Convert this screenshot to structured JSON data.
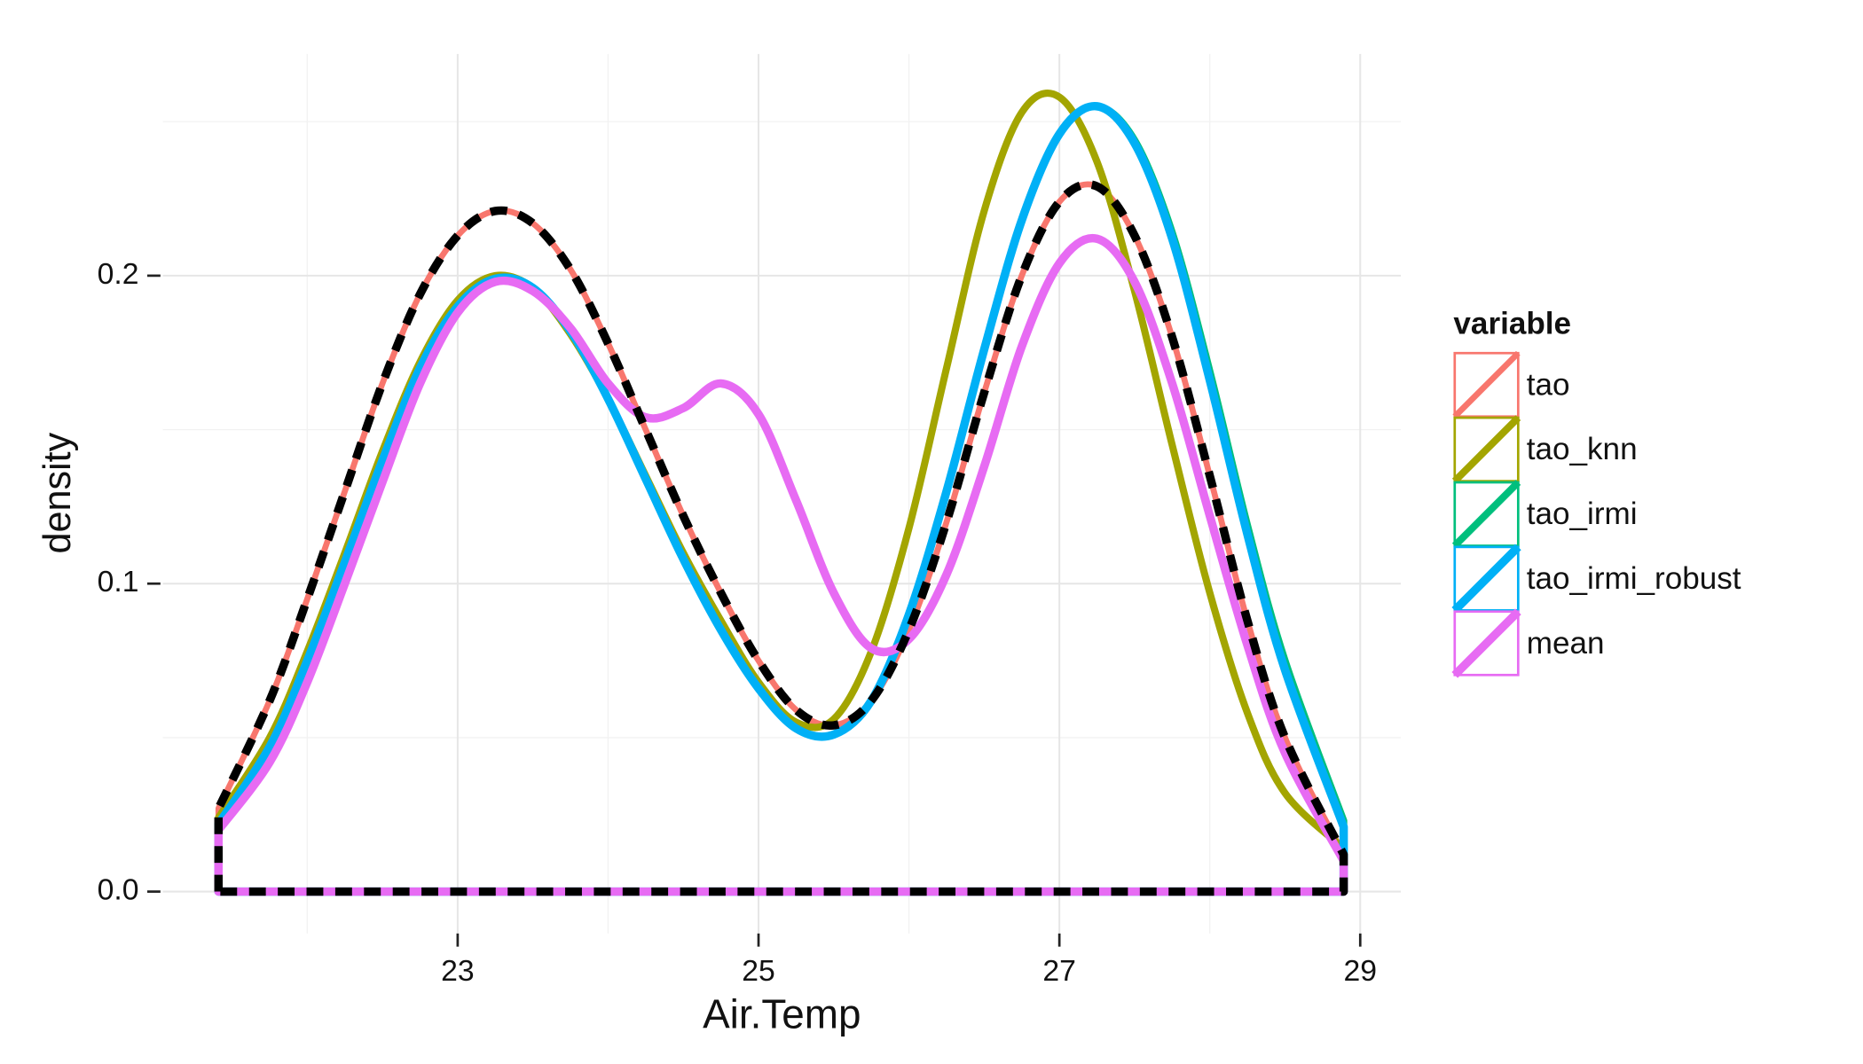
{
  "chart_data": {
    "type": "density",
    "x_label": "Air.Temp",
    "y_label": "density",
    "legend_title": "variable",
    "legend": "right",
    "grid": true,
    "xlim": [
      21.04,
      29.27
    ],
    "ylim": [
      -0.0136,
      0.272
    ],
    "xticks": [
      23,
      25,
      27,
      29
    ],
    "yticks": [
      {
        "value": 0,
        "label": "0.0"
      },
      0.1,
      0.2
    ],
    "xminor": [
      22,
      24,
      26,
      28
    ],
    "yminor": [
      0.05,
      0.15,
      0.25
    ],
    "x": [
      21.41,
      21.41,
      21.75,
      22,
      22.25,
      22.5,
      22.75,
      23,
      23.25,
      23.5,
      23.75,
      24,
      24.25,
      24.5,
      24.75,
      25,
      25.25,
      25.5,
      25.75,
      26,
      26.25,
      26.5,
      26.75,
      27,
      27.25,
      27.5,
      27.75,
      28,
      28.25,
      28.5,
      28.89,
      28.89
    ],
    "series": [
      {
        "name": "tao",
        "color": "#f8766d",
        "width": 5,
        "values": [
          0,
          0.027,
          0.062,
          0.095,
          0.13,
          0.165,
          0.194,
          0.213,
          0.221,
          0.217,
          0.202,
          0.178,
          0.15,
          0.122,
          0.097,
          0.075,
          0.059,
          0.054,
          0.062,
          0.085,
          0.12,
          0.162,
          0.2,
          0.224,
          0.229,
          0.213,
          0.18,
          0.135,
          0.088,
          0.05,
          0.012,
          0
        ]
      },
      {
        "name": "tao_knn",
        "color": "#a3a500",
        "width": 6,
        "values": [
          0,
          0.024,
          0.05,
          0.078,
          0.11,
          0.143,
          0.172,
          0.192,
          0.2,
          0.196,
          0.181,
          0.16,
          0.135,
          0.11,
          0.088,
          0.068,
          0.055,
          0.056,
          0.078,
          0.118,
          0.17,
          0.221,
          0.253,
          0.258,
          0.237,
          0.195,
          0.145,
          0.097,
          0.058,
          0.032,
          0.014,
          0
        ]
      },
      {
        "name": "tao_irmi",
        "color": "#00bf7d",
        "width": 6,
        "values": [
          0,
          0.022,
          0.047,
          0.075,
          0.107,
          0.14,
          0.17,
          0.19,
          0.199,
          0.196,
          0.182,
          0.16,
          0.134,
          0.108,
          0.085,
          0.066,
          0.053,
          0.051,
          0.062,
          0.09,
          0.13,
          0.176,
          0.218,
          0.246,
          0.255,
          0.244,
          0.214,
          0.169,
          0.119,
          0.075,
          0.023,
          0
        ]
      },
      {
        "name": "tao_irmi_robust",
        "color": "#00b0f6",
        "width": 7,
        "values": [
          0,
          0.022,
          0.047,
          0.075,
          0.107,
          0.14,
          0.17,
          0.19,
          0.199,
          0.196,
          0.182,
          0.16,
          0.134,
          0.108,
          0.085,
          0.066,
          0.053,
          0.051,
          0.062,
          0.09,
          0.13,
          0.176,
          0.218,
          0.246,
          0.255,
          0.243,
          0.212,
          0.166,
          0.116,
          0.072,
          0.021,
          0
        ]
      },
      {
        "name": "mean",
        "color": "#e76bf3",
        "width": 7,
        "values": [
          0,
          0.02,
          0.042,
          0.068,
          0.1,
          0.133,
          0.165,
          0.188,
          0.198,
          0.195,
          0.183,
          0.165,
          0.154,
          0.157,
          0.165,
          0.155,
          0.127,
          0.097,
          0.079,
          0.082,
          0.103,
          0.138,
          0.177,
          0.204,
          0.212,
          0.198,
          0.165,
          0.122,
          0.08,
          0.045,
          0.01,
          0
        ]
      },
      {
        "color": "#000000",
        "width": 7,
        "dashed": true,
        "values": [
          0,
          0.027,
          0.062,
          0.095,
          0.13,
          0.165,
          0.194,
          0.213,
          0.221,
          0.217,
          0.202,
          0.178,
          0.15,
          0.122,
          0.097,
          0.075,
          0.059,
          0.054,
          0.062,
          0.085,
          0.12,
          0.162,
          0.2,
          0.224,
          0.229,
          0.213,
          0.18,
          0.135,
          0.088,
          0.05,
          0.012,
          0
        ]
      }
    ]
  }
}
